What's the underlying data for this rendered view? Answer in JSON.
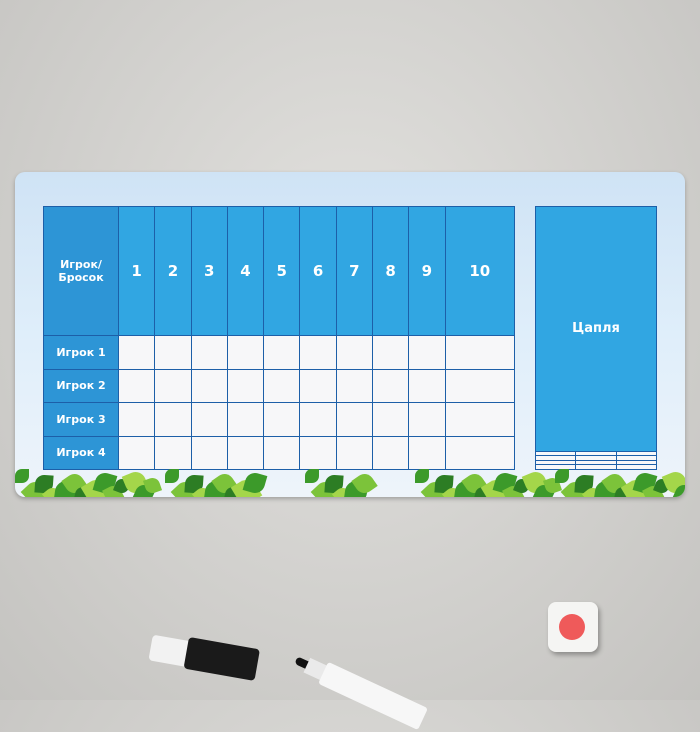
{
  "scoreboard": {
    "corner_label_line1": "Игрок/",
    "corner_label_line2": "Бросок",
    "throws": [
      "1",
      "2",
      "3",
      "4",
      "5",
      "6",
      "7",
      "8",
      "9",
      "10"
    ],
    "players": [
      "Игрок 1",
      "Игрок 2",
      "Игрок 3",
      "Игрок 4"
    ],
    "side_title": "Цапля",
    "colors": {
      "header": "#31a6e2",
      "row_header": "#2d95d6",
      "grid_line": "#1d5fa8",
      "leaves": "#3c9a2a"
    }
  }
}
